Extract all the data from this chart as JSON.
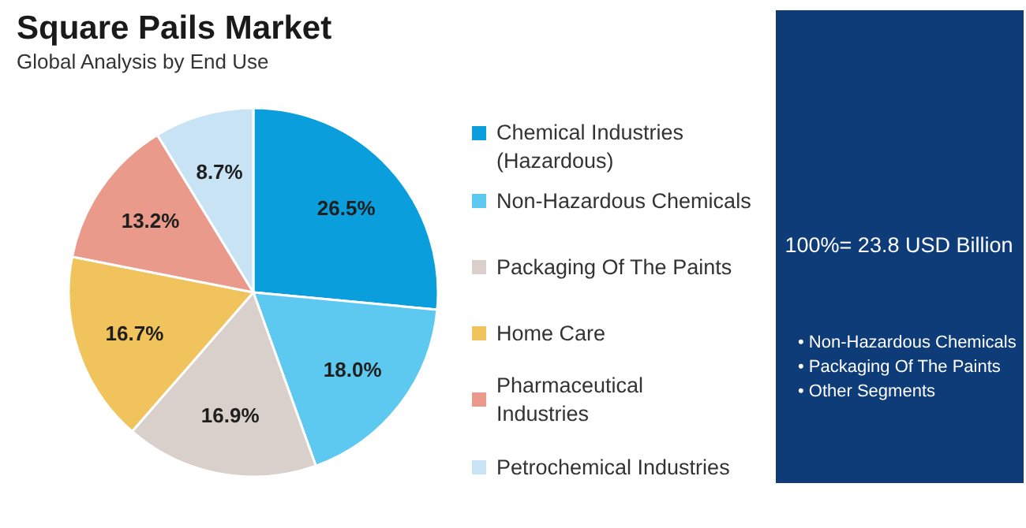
{
  "chart_data": {
    "type": "pie",
    "title": "Square Pails Market",
    "subtitle": "Global Analysis by End Use",
    "categories": [
      "Chemical Industries (Hazardous)",
      "Non-Hazardous Chemicals",
      "Packaging Of The Paints",
      "Home Care",
      "Pharmaceutical Industries",
      "Petrochemical Industries"
    ],
    "values": [
      26.5,
      18.0,
      16.9,
      16.7,
      13.2,
      8.7
    ],
    "colors": [
      "#0a9fdc",
      "#5ec9f0",
      "#d9cfcb",
      "#f0c35c",
      "#e99a8a",
      "#c8e4f4"
    ],
    "value_labels": [
      "26.5%",
      "18.0%",
      "16.9%",
      "16.7%",
      "13.2%",
      "8.7%"
    ],
    "legend": "right",
    "annotations": [
      "100%= 23.8 USD Billion",
      "• Non-Hazardous Chemicals",
      "• Packaging Of The Paints",
      "• Other Segments"
    ]
  }
}
